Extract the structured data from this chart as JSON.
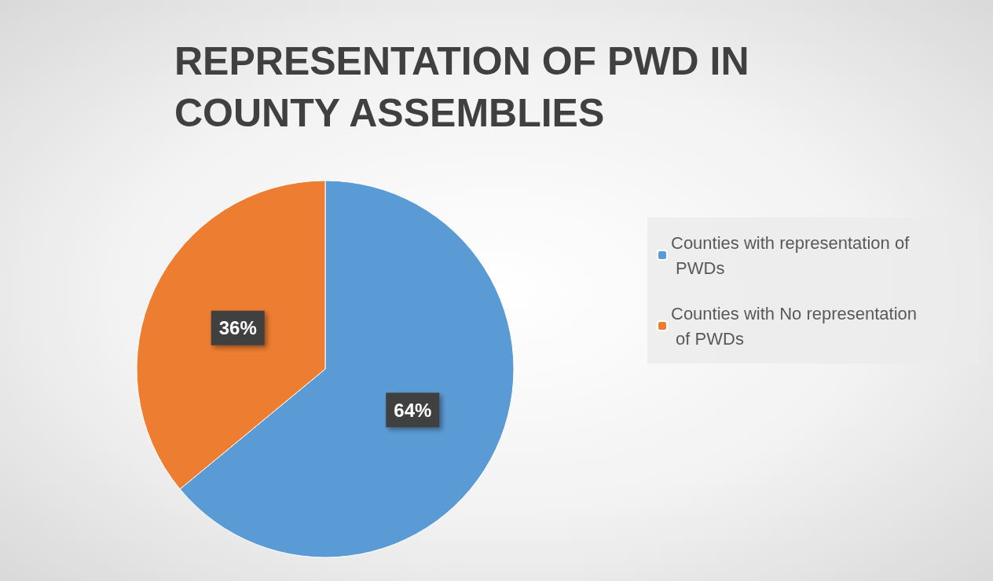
{
  "chart_data": {
    "type": "pie",
    "title": "REPRESENTATION OF PWD IN COUNTY ASSEMBLIES",
    "categories": [
      "Counties with representation of PWDs",
      "Counties with No representation of PWDs"
    ],
    "values": [
      64,
      36
    ],
    "colors": [
      "#5b9bd5",
      "#ed7d31"
    ],
    "value_labels": [
      "64%",
      "36%"
    ],
    "legend": "right"
  }
}
